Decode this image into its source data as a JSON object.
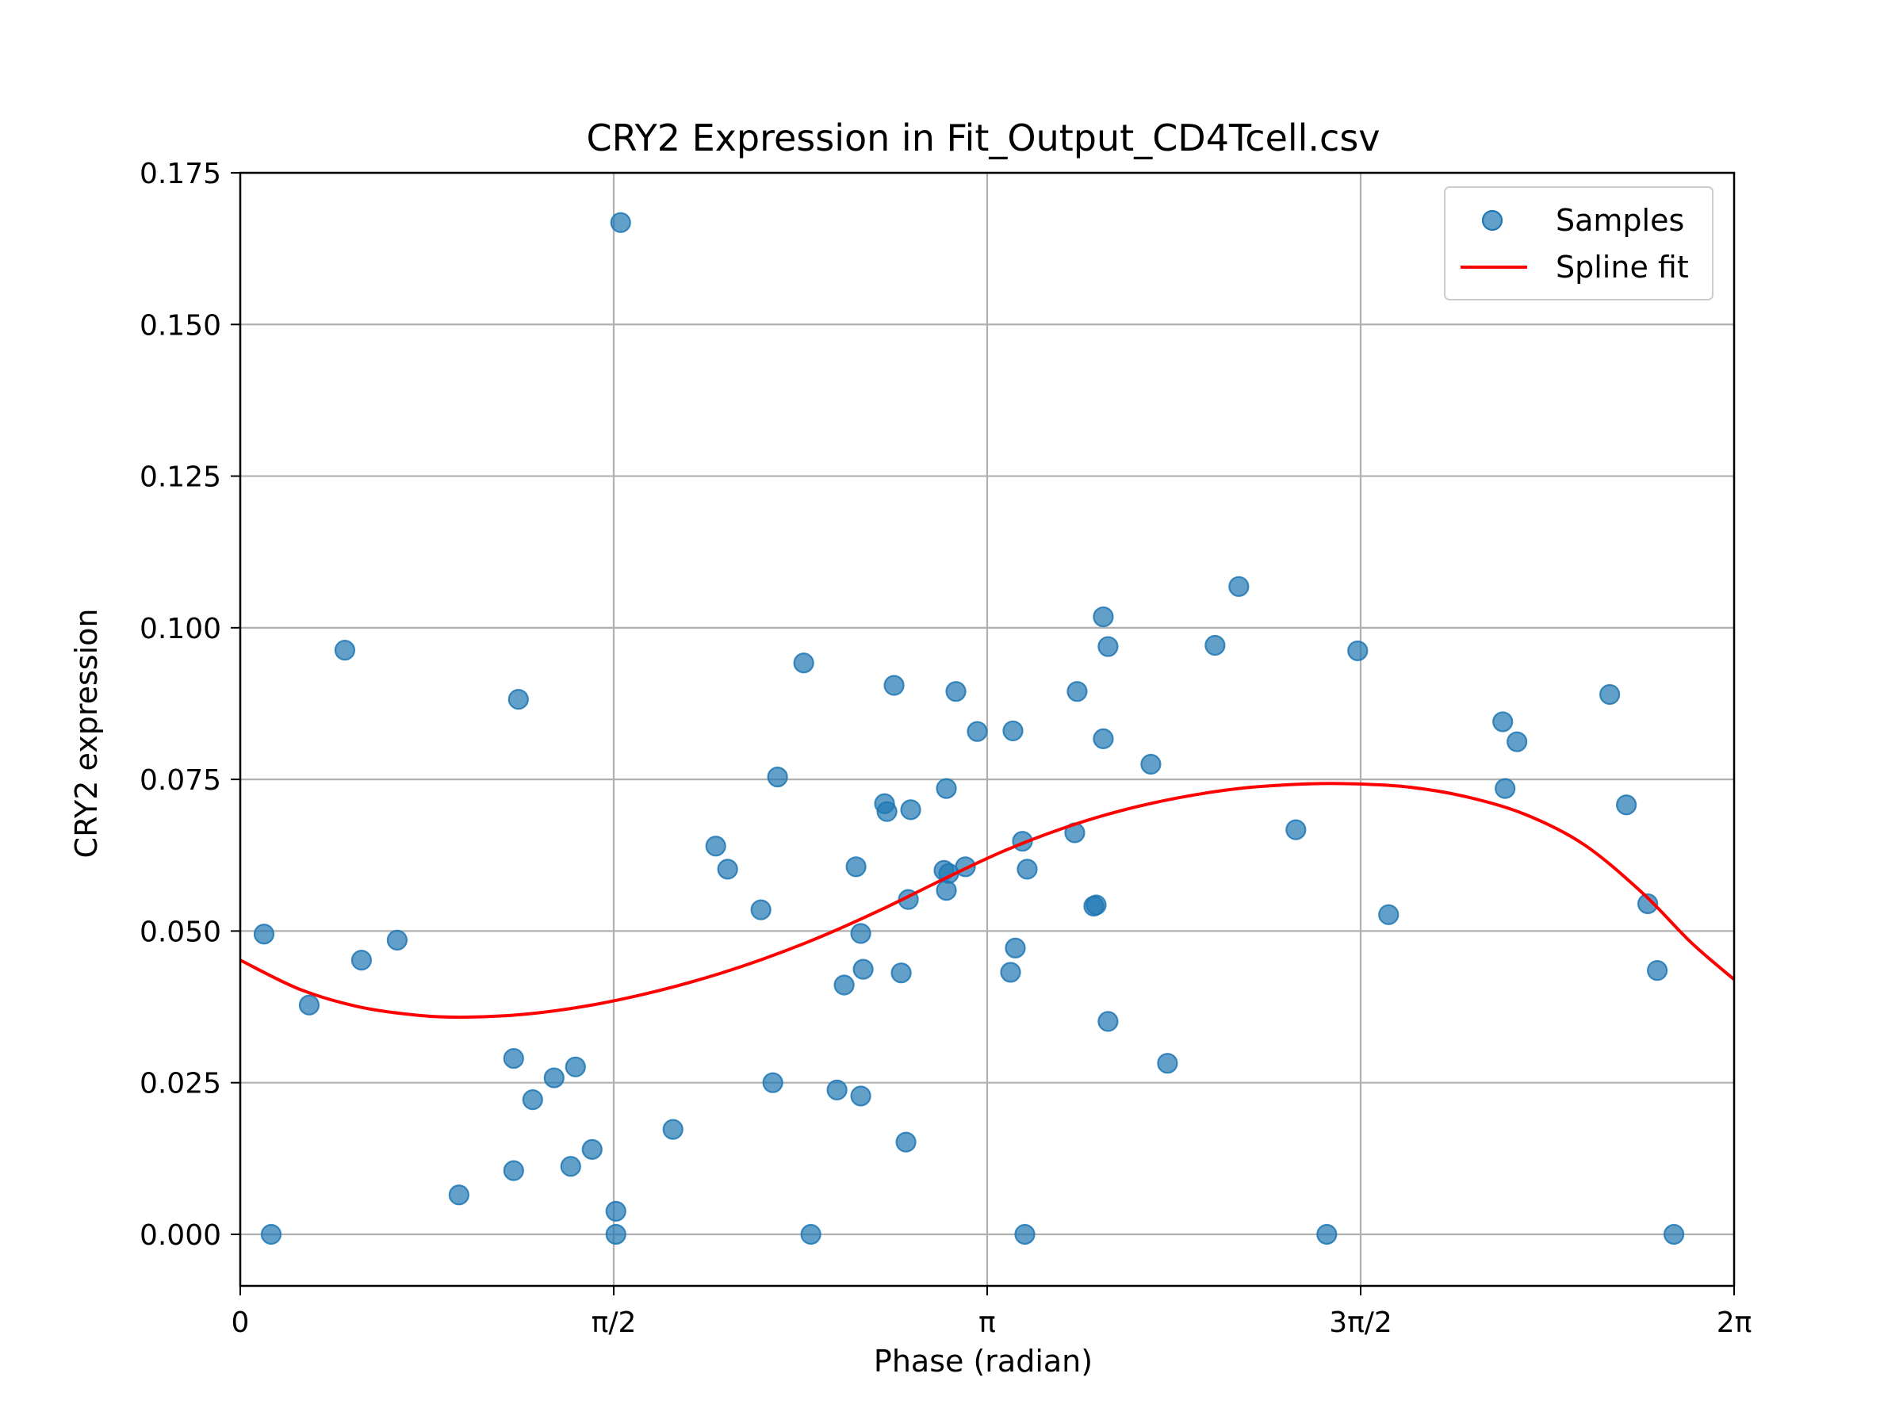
{
  "chart_data": {
    "type": "scatter",
    "title": "CRY2 Expression in Fit_Output_CD4Tcell.csv",
    "xlabel": "Phase (radian)",
    "ylabel": "CRY2 expression",
    "xlim": [
      0,
      6.2832
    ],
    "ylim": [
      -0.0085,
      0.175
    ],
    "x_ticks": [
      {
        "value": 0,
        "label": "0"
      },
      {
        "value": 1.5708,
        "label": "π/2"
      },
      {
        "value": 3.1416,
        "label": "π"
      },
      {
        "value": 4.7124,
        "label": "3π/2"
      },
      {
        "value": 6.2832,
        "label": "2π"
      }
    ],
    "y_ticks": [
      {
        "value": 0.0,
        "label": "0.000"
      },
      {
        "value": 0.025,
        "label": "0.025"
      },
      {
        "value": 0.05,
        "label": "0.050"
      },
      {
        "value": 0.075,
        "label": "0.075"
      },
      {
        "value": 0.1,
        "label": "0.100"
      },
      {
        "value": 0.125,
        "label": "0.125"
      },
      {
        "value": 0.15,
        "label": "0.150"
      },
      {
        "value": 0.175,
        "label": "0.175"
      }
    ],
    "grid": true,
    "legend_position": "top-right",
    "series": [
      {
        "name": "Samples",
        "kind": "scatter",
        "color": "#1f77b4",
        "points": [
          [
            0.1,
            0.0495
          ],
          [
            0.13,
            0.0
          ],
          [
            0.29,
            0.0378
          ],
          [
            0.44,
            0.0963
          ],
          [
            0.51,
            0.0452
          ],
          [
            0.66,
            0.0485
          ],
          [
            0.92,
            0.0065
          ],
          [
            1.15,
            0.029
          ],
          [
            1.15,
            0.0105
          ],
          [
            1.17,
            0.0882
          ],
          [
            1.23,
            0.0222
          ],
          [
            1.32,
            0.0258
          ],
          [
            1.39,
            0.0112
          ],
          [
            1.41,
            0.0276
          ],
          [
            1.48,
            0.014
          ],
          [
            1.58,
            0.0038
          ],
          [
            1.58,
            0.0
          ],
          [
            1.6,
            0.1668
          ],
          [
            1.82,
            0.0173
          ],
          [
            2.0,
            0.064
          ],
          [
            2.05,
            0.0602
          ],
          [
            2.19,
            0.0535
          ],
          [
            2.24,
            0.025
          ],
          [
            2.26,
            0.0754
          ],
          [
            2.37,
            0.0942
          ],
          [
            2.4,
            0.0
          ],
          [
            2.51,
            0.0238
          ],
          [
            2.54,
            0.0411
          ],
          [
            2.59,
            0.0606
          ],
          [
            2.61,
            0.0496
          ],
          [
            2.61,
            0.0228
          ],
          [
            2.62,
            0.0437
          ],
          [
            2.71,
            0.071
          ],
          [
            2.72,
            0.0697
          ],
          [
            2.75,
            0.0905
          ],
          [
            2.78,
            0.0431
          ],
          [
            2.8,
            0.0152
          ],
          [
            2.81,
            0.0552
          ],
          [
            2.82,
            0.07
          ],
          [
            2.96,
            0.06
          ],
          [
            2.97,
            0.0735
          ],
          [
            2.97,
            0.0567
          ],
          [
            2.98,
            0.0595
          ],
          [
            3.01,
            0.0895
          ],
          [
            3.05,
            0.0606
          ],
          [
            3.1,
            0.0829
          ],
          [
            3.24,
            0.0432
          ],
          [
            3.25,
            0.083
          ],
          [
            3.26,
            0.0472
          ],
          [
            3.29,
            0.0648
          ],
          [
            3.3,
            0.0
          ],
          [
            3.31,
            0.0602
          ],
          [
            3.51,
            0.0662
          ],
          [
            3.52,
            0.0895
          ],
          [
            3.59,
            0.0541
          ],
          [
            3.6,
            0.0543
          ],
          [
            3.63,
            0.1018
          ],
          [
            3.63,
            0.0817
          ],
          [
            3.65,
            0.0969
          ],
          [
            3.65,
            0.0351
          ],
          [
            3.83,
            0.0775
          ],
          [
            3.9,
            0.0282
          ],
          [
            4.1,
            0.0971
          ],
          [
            4.2,
            0.1068
          ],
          [
            4.44,
            0.0667
          ],
          [
            4.57,
            0.0
          ],
          [
            4.7,
            0.0962
          ],
          [
            4.83,
            0.0527
          ],
          [
            5.31,
            0.0845
          ],
          [
            5.32,
            0.0735
          ],
          [
            5.37,
            0.0812
          ],
          [
            5.76,
            0.089
          ],
          [
            5.83,
            0.0708
          ],
          [
            5.92,
            0.0545
          ],
          [
            5.96,
            0.0435
          ],
          [
            6.03,
            0.0
          ]
        ]
      },
      {
        "name": "Spline fit",
        "kind": "line",
        "color": "#ff0000",
        "points": [
          [
            0.0,
            0.0452
          ],
          [
            0.25,
            0.0404
          ],
          [
            0.5,
            0.0375
          ],
          [
            0.75,
            0.0361
          ],
          [
            0.95,
            0.0358
          ],
          [
            1.2,
            0.0363
          ],
          [
            1.45,
            0.0376
          ],
          [
            1.7,
            0.0396
          ],
          [
            1.95,
            0.0422
          ],
          [
            2.2,
            0.0454
          ],
          [
            2.45,
            0.0492
          ],
          [
            2.7,
            0.0536
          ],
          [
            2.95,
            0.0584
          ],
          [
            3.2,
            0.063
          ],
          [
            3.45,
            0.0668
          ],
          [
            3.7,
            0.0698
          ],
          [
            3.95,
            0.072
          ],
          [
            4.2,
            0.0735
          ],
          [
            4.45,
            0.0742
          ],
          [
            4.65,
            0.0743
          ],
          [
            4.9,
            0.0738
          ],
          [
            5.15,
            0.0722
          ],
          [
            5.4,
            0.0693
          ],
          [
            5.65,
            0.0643
          ],
          [
            5.9,
            0.0562
          ],
          [
            6.1,
            0.0482
          ],
          [
            6.2832,
            0.042
          ]
        ]
      }
    ]
  }
}
